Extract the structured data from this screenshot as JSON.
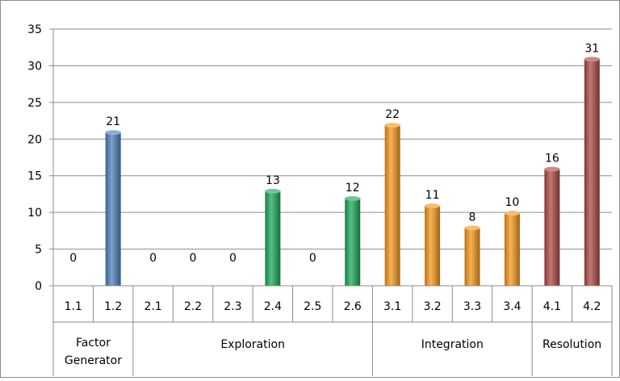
{
  "chart_data": {
    "type": "bar",
    "categories": [
      "1.1",
      "1.2",
      "2.1",
      "2.2",
      "2.3",
      "2.4",
      "2.5",
      "2.6",
      "3.1",
      "3.2",
      "3.3",
      "3.4",
      "4.1",
      "4.2"
    ],
    "values": [
      0,
      21,
      0,
      0,
      0,
      13,
      0,
      12,
      22,
      11,
      8,
      10,
      16,
      31
    ],
    "groups": [
      {
        "label_lines": [
          "Factor",
          "Generator"
        ],
        "count": 2,
        "color": "#4f81bd"
      },
      {
        "label_lines": [
          "Exploration"
        ],
        "count": 6,
        "color": "#1faa59"
      },
      {
        "label_lines": [
          "Integration"
        ],
        "count": 4,
        "color": "#f79a1d"
      },
      {
        "label_lines": [
          "Resolution"
        ],
        "count": 2,
        "color": "#b04a45"
      }
    ],
    "ylim": [
      0,
      35
    ],
    "yticks": [
      0,
      5,
      10,
      15,
      20,
      25,
      30,
      35
    ],
    "grid": true,
    "legend": "none",
    "data_labels": true
  }
}
